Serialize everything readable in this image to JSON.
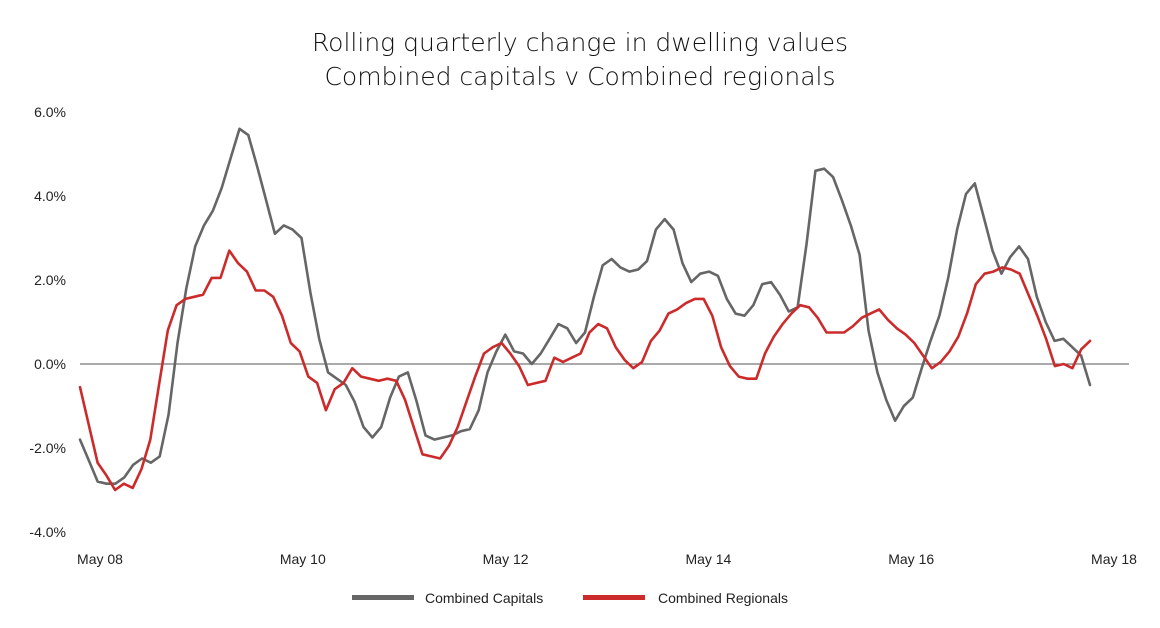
{
  "chart_data": {
    "type": "line",
    "title_lines": [
      "Rolling quarterly change in dwelling values",
      "Combined capitals v Combined regionals"
    ],
    "x_tick_labels": [
      "May 08",
      "May 10",
      "May 12",
      "May 14",
      "May 16",
      "May 18"
    ],
    "y_tick_labels": [
      "6.0%",
      "4.0%",
      "2.0%",
      "0.0%",
      "-2.0%",
      "-4.0%"
    ],
    "y_ticks": [
      6,
      4,
      2,
      0,
      -2,
      -4
    ],
    "ylim": [
      -4,
      6
    ],
    "x_start": "2008-05",
    "x_end": "2018-05",
    "grid": false,
    "zero_line": true,
    "legend_position": "bottom-center",
    "series": [
      {
        "name": "Combined Capitals",
        "color": "#666666",
        "values": [
          -1.8,
          -2.3,
          -2.8,
          -2.85,
          -2.85,
          -2.7,
          -2.4,
          -2.25,
          -2.35,
          -2.2,
          -1.2,
          0.5,
          1.8,
          2.8,
          3.3,
          3.65,
          4.2,
          4.9,
          5.6,
          5.45,
          4.7,
          3.9,
          3.1,
          3.3,
          3.2,
          3.0,
          1.7,
          0.6,
          -0.2,
          -0.35,
          -0.5,
          -0.9,
          -1.5,
          -1.75,
          -1.5,
          -0.8,
          -0.3,
          -0.2,
          -0.9,
          -1.7,
          -1.8,
          -1.75,
          -1.7,
          -1.6,
          -1.55,
          -1.1,
          -0.2,
          0.3,
          0.7,
          0.3,
          0.25,
          0.0,
          0.25,
          0.6,
          0.95,
          0.85,
          0.5,
          0.75,
          1.6,
          2.35,
          2.5,
          2.3,
          2.2,
          2.25,
          2.45,
          3.2,
          3.45,
          3.2,
          2.4,
          1.95,
          2.15,
          2.2,
          2.1,
          1.55,
          1.2,
          1.15,
          1.4,
          1.9,
          1.95,
          1.65,
          1.25,
          1.35,
          2.85,
          4.6,
          4.65,
          4.45,
          3.9,
          3.3,
          2.6,
          0.8,
          -0.2,
          -0.85,
          -1.35,
          -1.0,
          -0.8,
          -0.1,
          0.55,
          1.15,
          2.05,
          3.2,
          4.05,
          4.3,
          3.5,
          2.7,
          2.15,
          2.55,
          2.8,
          2.5,
          1.6,
          1.0,
          0.55,
          0.6,
          0.4,
          0.2,
          -0.5
        ]
      },
      {
        "name": "Combined Regionals",
        "color": "#cc2b2b",
        "values": [
          -0.55,
          -1.45,
          -2.35,
          -2.65,
          -3.0,
          -2.85,
          -2.95,
          -2.5,
          -1.8,
          -0.5,
          0.8,
          1.4,
          1.55,
          1.6,
          1.65,
          2.05,
          2.05,
          2.7,
          2.4,
          2.2,
          1.75,
          1.75,
          1.6,
          1.15,
          0.5,
          0.3,
          -0.3,
          -0.45,
          -1.1,
          -0.6,
          -0.45,
          -0.1,
          -0.3,
          -0.35,
          -0.4,
          -0.35,
          -0.4,
          -0.85,
          -1.5,
          -2.15,
          -2.2,
          -2.25,
          -1.95,
          -1.5,
          -0.9,
          -0.3,
          0.25,
          0.4,
          0.5,
          0.25,
          -0.05,
          -0.5,
          -0.45,
          -0.4,
          0.15,
          0.05,
          0.15,
          0.25,
          0.75,
          0.95,
          0.85,
          0.4,
          0.1,
          -0.1,
          0.05,
          0.55,
          0.8,
          1.2,
          1.3,
          1.45,
          1.55,
          1.55,
          1.15,
          0.4,
          -0.05,
          -0.3,
          -0.35,
          -0.35,
          0.25,
          0.65,
          0.95,
          1.2,
          1.4,
          1.35,
          1.1,
          0.75,
          0.75,
          0.75,
          0.9,
          1.1,
          1.2,
          1.3,
          1.05,
          0.85,
          0.7,
          0.5,
          0.2,
          -0.1,
          0.05,
          0.3,
          0.65,
          1.2,
          1.9,
          2.15,
          2.2,
          2.3,
          2.25,
          2.15,
          1.65,
          1.15,
          0.6,
          -0.05,
          0.0,
          -0.1,
          0.35,
          0.55
        ]
      }
    ]
  }
}
